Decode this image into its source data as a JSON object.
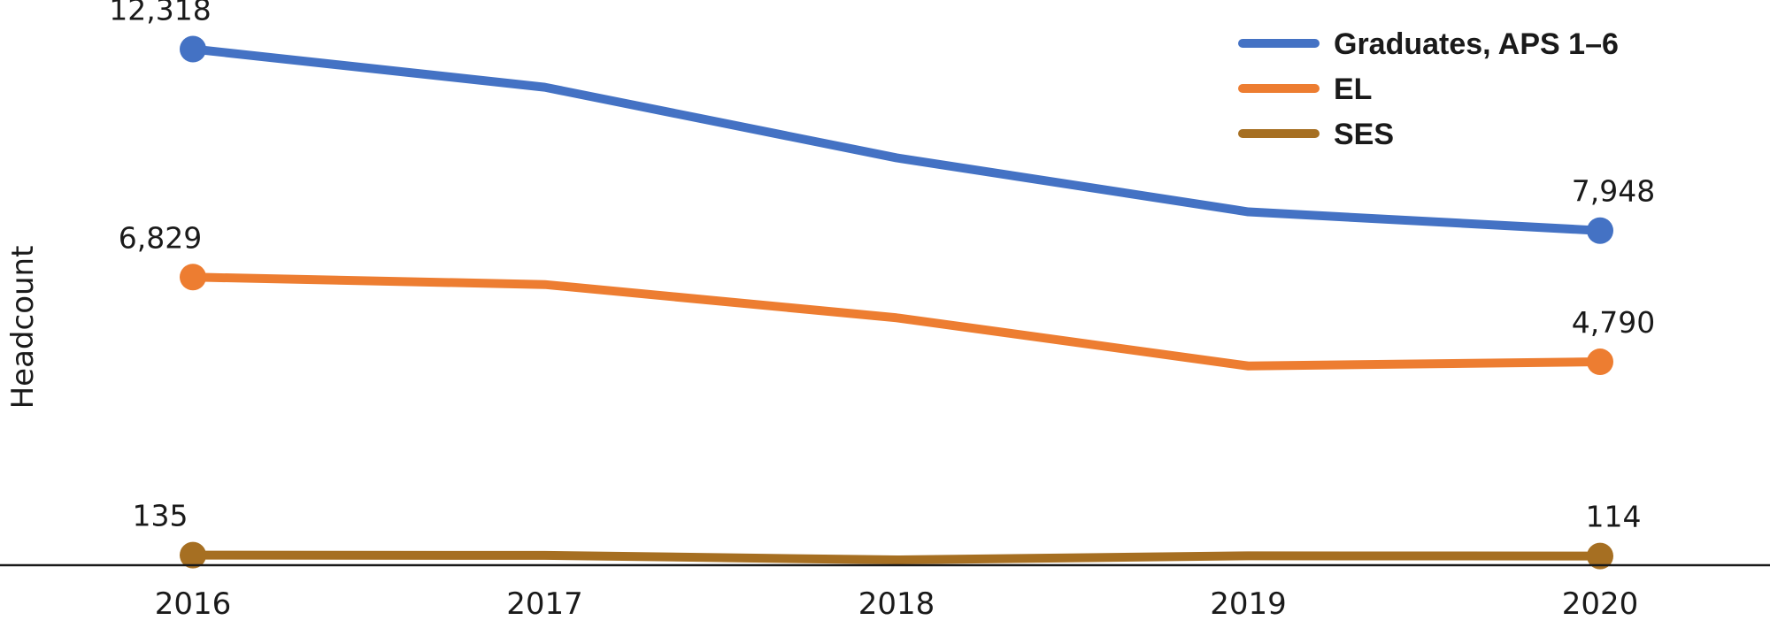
{
  "chart_data": {
    "type": "line",
    "title": "",
    "xlabel": "",
    "ylabel": "Headcount",
    "categories": [
      "2016",
      "2017",
      "2018",
      "2019",
      "2020"
    ],
    "ylim": [
      0,
      13500
    ],
    "grid": false,
    "legend_position": "top-right",
    "series": [
      {
        "name": "Graduates, APS 1–6",
        "color": "#4472C4",
        "values": [
          12318,
          11400,
          9700,
          8400,
          7948
        ],
        "labels": [
          "12,318",
          "",
          "",
          "",
          "7,948"
        ]
      },
      {
        "name": "EL",
        "color": "#ED7D31",
        "values": [
          6829,
          6650,
          5850,
          4690,
          4790
        ],
        "labels": [
          "6,829",
          "",
          "",
          "",
          "4,790"
        ]
      },
      {
        "name": "SES",
        "color": "#A66F22",
        "values": [
          135,
          130,
          20,
          120,
          114
        ],
        "labels": [
          "135",
          "",
          "",
          "",
          "114"
        ]
      }
    ]
  }
}
